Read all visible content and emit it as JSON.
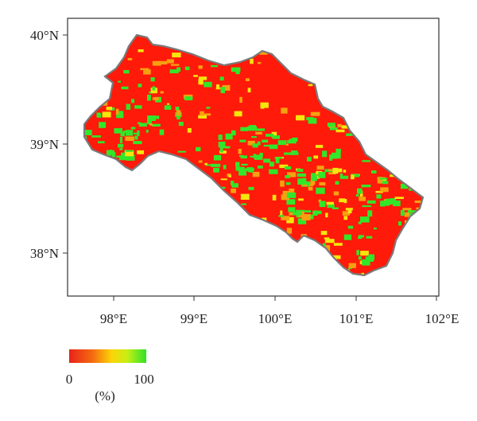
{
  "map": {
    "y_axis_labels": [
      "40°N",
      "39°N",
      "38°N"
    ],
    "x_axis_labels": [
      "98°E",
      "99°E",
      "100°E",
      "101°E",
      "102°E"
    ],
    "lat_ticks": [
      40,
      39,
      38
    ],
    "lon_ticks": [
      98,
      99,
      100,
      101,
      102
    ]
  },
  "legend": {
    "min_label": "0",
    "max_label": "100",
    "unit_label": "(%)",
    "colors": [
      "#e8231a",
      "#f46a10",
      "#fcb008",
      "#f2f20a",
      "#a8ec1c",
      "#2ee32a"
    ]
  },
  "colors": {
    "region_outline": "#7a7a7a",
    "low": "#ff1a0a",
    "mid": "#f5e60c",
    "high": "#32e62a"
  }
}
